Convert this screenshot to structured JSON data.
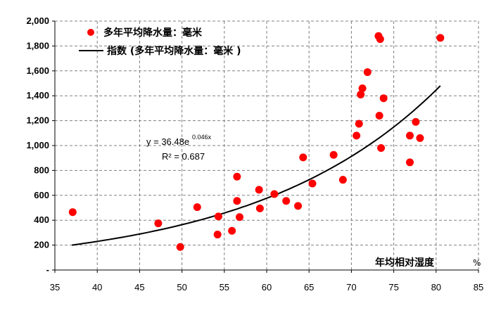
{
  "chart_data": {
    "type": "scatter",
    "title": "",
    "xlabel": "年均相对湿度",
    "xlabel_unit": "%",
    "ylabel": "",
    "xlim": [
      35,
      85
    ],
    "ylim": [
      0,
      2000
    ],
    "x_ticks": [
      "35",
      "40",
      "45",
      "50",
      "55",
      "60",
      "65",
      "70",
      "75",
      "80",
      "85"
    ],
    "y_ticks": [
      "-",
      "200",
      "400",
      "600",
      "800",
      "1,000",
      "1,200",
      "1,400",
      "1,600",
      "1,800",
      "2,000"
    ],
    "grid": true,
    "legend_position": "top-left",
    "series": [
      {
        "name": "多年平均降水量：毫米",
        "kind": "scatter",
        "color": "#ff0000",
        "points": [
          [
            37.1,
            465
          ],
          [
            47.2,
            375
          ],
          [
            49.8,
            185
          ],
          [
            51.8,
            505
          ],
          [
            54.2,
            285
          ],
          [
            54.3,
            430
          ],
          [
            55.9,
            315
          ],
          [
            56.5,
            750
          ],
          [
            56.5,
            555
          ],
          [
            56.8,
            425
          ],
          [
            59.1,
            645
          ],
          [
            59.2,
            495
          ],
          [
            60.9,
            610
          ],
          [
            62.3,
            555
          ],
          [
            63.7,
            515
          ],
          [
            64.3,
            905
          ],
          [
            65.4,
            695
          ],
          [
            67.9,
            925
          ],
          [
            69.0,
            725
          ],
          [
            70.6,
            1080
          ],
          [
            70.9,
            1175
          ],
          [
            71.1,
            1410
          ],
          [
            71.3,
            1460
          ],
          [
            71.9,
            1590
          ],
          [
            73.2,
            1880
          ],
          [
            73.4,
            1855
          ],
          [
            73.3,
            1240
          ],
          [
            73.5,
            980
          ],
          [
            73.8,
            1380
          ],
          [
            76.9,
            1080
          ],
          [
            76.9,
            865
          ],
          [
            77.6,
            1190
          ],
          [
            78.1,
            1060
          ],
          [
            80.5,
            1865
          ]
        ]
      },
      {
        "name": "指数 (多年平均降水量：毫米 )",
        "kind": "trendline",
        "color": "#000000",
        "model": {
          "a": 36.48,
          "b": 0.046
        },
        "x_range": [
          37,
          80.5
        ]
      }
    ],
    "annotations": {
      "equation_base": "y = 36.48e",
      "equation_exp": "0.046x",
      "r2_text": "R² = 0.687"
    }
  }
}
